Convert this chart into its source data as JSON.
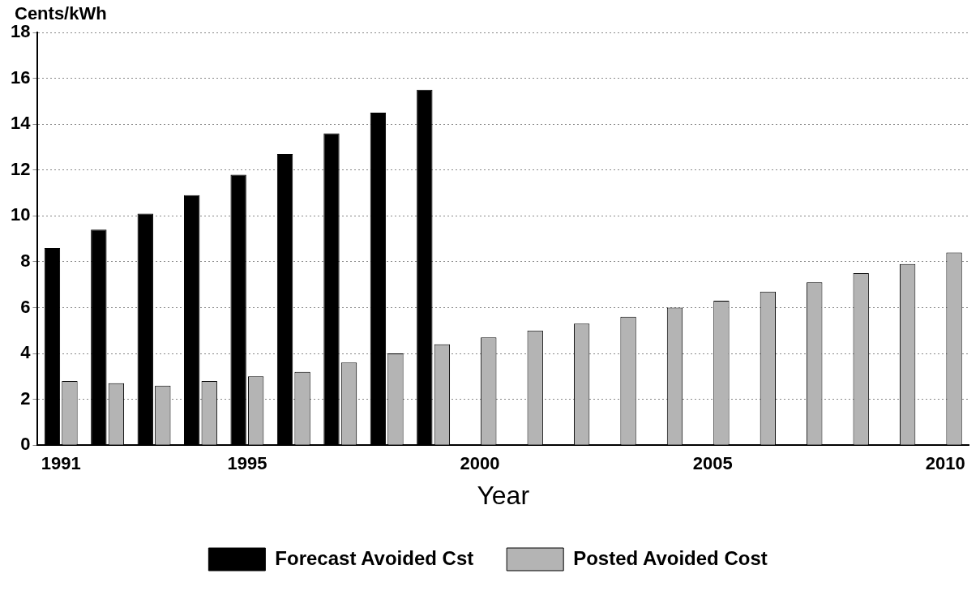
{
  "chart_data": {
    "type": "bar",
    "xlabel": "Year",
    "ylabel": "Cents/kWh",
    "categories": [
      "1991",
      null,
      null,
      null,
      "1995",
      null,
      null,
      null,
      null,
      "2000",
      null,
      null,
      null,
      null,
      "2005",
      null,
      null,
      null,
      null,
      "2010"
    ],
    "series": [
      {
        "name": "Forecast Avoided Cst",
        "color": "#000000",
        "values": [
          8.6,
          9.4,
          10.1,
          10.9,
          11.8,
          12.7,
          13.6,
          14.5,
          15.5,
          null,
          null,
          null,
          null,
          null,
          null,
          null,
          null,
          null,
          null,
          null
        ]
      },
      {
        "name": "Posted Avoided Cost",
        "color": "#b4b4b4",
        "values": [
          2.8,
          2.7,
          2.6,
          2.8,
          3.0,
          3.2,
          3.6,
          4.0,
          4.4,
          4.7,
          5.0,
          5.3,
          5.6,
          6.0,
          6.3,
          6.7,
          7.1,
          7.5,
          7.9,
          8.4
        ]
      }
    ],
    "ylim": [
      0,
      18
    ],
    "yticks": [
      0,
      2,
      4,
      6,
      8,
      10,
      12,
      14,
      16,
      18
    ],
    "grid": "y",
    "legend": "bottom"
  }
}
